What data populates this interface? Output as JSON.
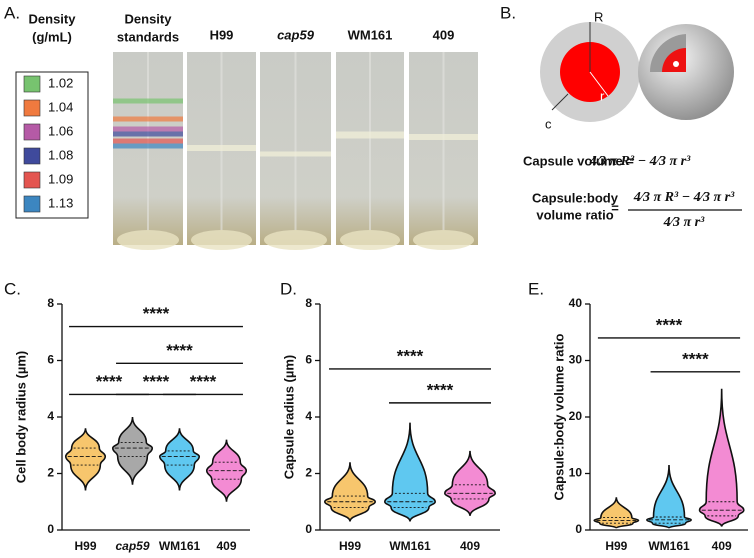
{
  "panel_labels": [
    "A.",
    "B.",
    "C.",
    "D.",
    "E."
  ],
  "panel_a": {
    "legend_title": [
      "Density",
      "(g/mL)"
    ],
    "standards": [
      {
        "label": "1.02",
        "color": "#77c36f"
      },
      {
        "label": "1.04",
        "color": "#f07a3f"
      },
      {
        "label": "1.06",
        "color": "#b55aa6"
      },
      {
        "label": "1.08",
        "color": "#3f4a9c"
      },
      {
        "label": "1.09",
        "color": "#e35550"
      },
      {
        "label": "1.13",
        "color": "#3c86c0"
      }
    ],
    "tube_headers": [
      [
        "Density",
        "standards"
      ],
      [
        "H99"
      ],
      [
        "cap59"
      ],
      [
        "WM161"
      ],
      [
        "409"
      ]
    ]
  },
  "panel_b": {
    "labels": [
      "R",
      "r",
      "c"
    ],
    "volume_label": "Capsule volume =",
    "volume_formula": "4⁄3 π R³ − 4⁄3 π r³",
    "ratio_label": [
      "Capsule:body",
      "volume ratio"
    ],
    "ratio_equals": "=",
    "ratio_numerator": "4⁄3 π R³ − 4⁄3 π r³",
    "ratio_denominator": "4⁄3 π r³"
  },
  "chart_data": [
    {
      "type": "violin",
      "y_label": "Cell body radius (µm)",
      "categories": [
        "H99",
        "cap59",
        "WM161",
        "409"
      ],
      "colors": [
        "#f7c66d",
        "#a8a8a8",
        "#5fc8f0",
        "#f38bd3"
      ],
      "min": [
        1.4,
        1.6,
        1.4,
        1.0
      ],
      "q1": [
        2.3,
        2.6,
        2.3,
        1.8
      ],
      "median": [
        2.6,
        2.9,
        2.6,
        2.1
      ],
      "q3": [
        2.9,
        3.1,
        2.8,
        2.4
      ],
      "max": [
        3.6,
        4.0,
        3.6,
        3.2
      ],
      "ylim": [
        0,
        8
      ],
      "yticks": [
        0,
        2,
        4,
        6,
        8
      ],
      "significance": [
        {
          "label": "****",
          "from": 0,
          "to": 3,
          "y": 7.2
        },
        {
          "label": "****",
          "from": 1,
          "to": 3,
          "y": 5.9
        },
        {
          "label": "****",
          "from": 0,
          "to": 1,
          "y": 4.8
        },
        {
          "label": "****",
          "from": 1,
          "to": 2,
          "y": 4.8
        },
        {
          "label": "****",
          "from": 2,
          "to": 3,
          "y": 4.8
        }
      ]
    },
    {
      "type": "violin",
      "y_label": "Capsule radius (µm)",
      "categories": [
        "H99",
        "WM161",
        "409"
      ],
      "colors": [
        "#f7c66d",
        "#5fc8f0",
        "#f38bd3"
      ],
      "min": [
        0.3,
        0.3,
        0.5
      ],
      "q1": [
        0.8,
        0.8,
        1.1
      ],
      "median": [
        1.0,
        1.0,
        1.3
      ],
      "q3": [
        1.2,
        1.3,
        1.6
      ],
      "max": [
        2.4,
        3.8,
        2.8
      ],
      "ylim": [
        0,
        8
      ],
      "yticks": [
        0,
        2,
        4,
        6,
        8
      ],
      "significance": [
        {
          "label": "****",
          "from": 0,
          "to": 2,
          "y": 5.7
        },
        {
          "label": "****",
          "from": 1,
          "to": 2,
          "y": 4.5
        }
      ]
    },
    {
      "type": "violin",
      "y_label": "Capsule:body volume ratio",
      "categories": [
        "H99",
        "WM161",
        "409"
      ],
      "colors": [
        "#f7c66d",
        "#5fc8f0",
        "#f38bd3"
      ],
      "min": [
        0.3,
        0.3,
        0.6
      ],
      "q1": [
        1.2,
        1.2,
        2.5
      ],
      "median": [
        1.7,
        1.8,
        3.5
      ],
      "q3": [
        2.2,
        2.3,
        5
      ],
      "max": [
        5.8,
        11.5,
        25
      ],
      "ylim": [
        0,
        40
      ],
      "yticks": [
        0,
        10,
        20,
        30,
        40
      ],
      "significance": [
        {
          "label": "****",
          "from": 0,
          "to": 2,
          "y": 34
        },
        {
          "label": "****",
          "from": 1,
          "to": 2,
          "y": 28
        }
      ]
    }
  ]
}
